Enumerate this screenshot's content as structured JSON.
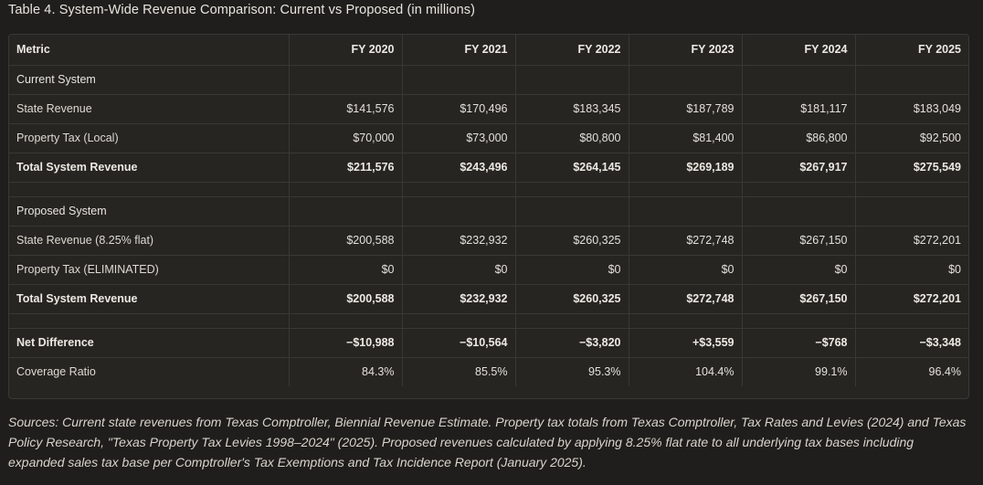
{
  "caption": "Table 4. System-Wide Revenue Comparison: Current vs Proposed (in millions)",
  "headers": [
    "Metric",
    "FY 2020",
    "FY 2021",
    "FY 2022",
    "FY 2023",
    "FY 2024",
    "FY 2025"
  ],
  "rows": [
    {
      "label": "Current System",
      "values": [
        "",
        "",
        "",
        "",
        "",
        ""
      ]
    },
    {
      "label": "State Revenue",
      "values": [
        "$141,576",
        "$170,496",
        "$183,345",
        "$187,789",
        "$181,117",
        "$183,049"
      ]
    },
    {
      "label": "Property Tax (Local)",
      "values": [
        "$70,000",
        "$73,000",
        "$80,800",
        "$81,400",
        "$86,800",
        "$92,500"
      ]
    },
    {
      "label": "Total System Revenue",
      "values": [
        "$211,576",
        "$243,496",
        "$264,145",
        "$269,189",
        "$267,917",
        "$275,549"
      ]
    },
    {
      "label": "",
      "values": [
        "",
        "",
        "",
        "",
        "",
        ""
      ]
    },
    {
      "label": "Proposed System",
      "values": [
        "",
        "",
        "",
        "",
        "",
        ""
      ]
    },
    {
      "label": "State Revenue (8.25% flat)",
      "values": [
        "$200,588",
        "$232,932",
        "$260,325",
        "$272,748",
        "$267,150",
        "$272,201"
      ]
    },
    {
      "label": "Property Tax (ELIMINATED)",
      "values": [
        "$0",
        "$0",
        "$0",
        "$0",
        "$0",
        "$0"
      ]
    },
    {
      "label": "Total System Revenue",
      "values": [
        "$200,588",
        "$232,932",
        "$260,325",
        "$272,748",
        "$267,150",
        "$272,201"
      ]
    },
    {
      "label": "",
      "values": [
        "",
        "",
        "",
        "",
        "",
        ""
      ]
    },
    {
      "label": "Net Difference",
      "values": [
        "−$10,988",
        "−$10,564",
        "−$3,820",
        "+$3,559",
        "−$768",
        "−$3,348"
      ]
    },
    {
      "label": "Coverage Ratio",
      "values": [
        "84.3%",
        "85.5%",
        "95.3%",
        "104.4%",
        "99.1%",
        "96.4%"
      ]
    }
  ],
  "footnote": "Sources: Current state revenues from Texas Comptroller, Biennial Revenue Estimate. Property tax totals from Texas Comptroller, Tax Rates and Levies (2024) and Texas Policy Research, \"Texas Property Tax Levies 1998–2024\" (2025). Proposed revenues calculated by applying 8.25% flat rate to all underlying tax bases including expanded sales tax base per Comptroller's Tax Exemptions and Tax Incidence Report (January 2025)."
}
